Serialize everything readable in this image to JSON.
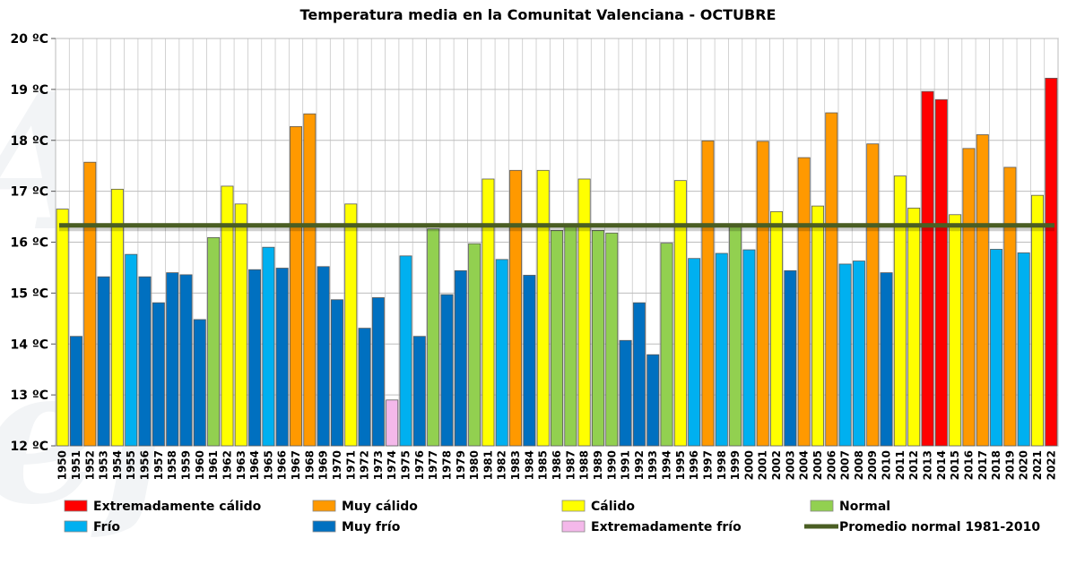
{
  "chart_data": {
    "type": "bar",
    "title": "Temperatura  media  en la Comunitat  Valenciana - OCTUBRE",
    "xlabel": "",
    "ylabel": "",
    "ylim": [
      12,
      20
    ],
    "yticks": [
      12,
      13,
      14,
      15,
      16,
      17,
      18,
      19,
      20
    ],
    "ytick_labels": [
      "12 ºC",
      "13 ºC",
      "14 ºC",
      "15 ºC",
      "16 ºC",
      "17 ºC",
      "18 ºC",
      "19 ºC",
      "20 ºC"
    ],
    "categories": [
      "1950",
      "1951",
      "1952",
      "1953",
      "1954",
      "1955",
      "1956",
      "1957",
      "1958",
      "1959",
      "1960",
      "1961",
      "1962",
      "1963",
      "1964",
      "1965",
      "1966",
      "1967",
      "1968",
      "1969",
      "1970",
      "1971",
      "1972",
      "1973",
      "1974",
      "1975",
      "1976",
      "1977",
      "1978",
      "1979",
      "1980",
      "1981",
      "1982",
      "1983",
      "1984",
      "1985",
      "1986",
      "1987",
      "1988",
      "1989",
      "1990",
      "1991",
      "1992",
      "1993",
      "1994",
      "1995",
      "1996",
      "1997",
      "1998",
      "1999",
      "2000",
      "2001",
      "2002",
      "2003",
      "2004",
      "2005",
      "2006",
      "2007",
      "2008",
      "2009",
      "2010",
      "2011",
      "2012",
      "2013",
      "2014",
      "2015",
      "2016",
      "2017",
      "2018",
      "2019",
      "2020",
      "2021",
      "2022"
    ],
    "values": [
      16.65,
      14.15,
      17.57,
      15.32,
      17.04,
      15.76,
      15.32,
      14.81,
      15.4,
      15.36,
      14.48,
      16.09,
      17.1,
      16.75,
      15.46,
      15.9,
      15.49,
      18.27,
      18.52,
      15.52,
      14.87,
      16.75,
      14.31,
      14.91,
      12.9,
      15.73,
      14.15,
      16.26,
      14.97,
      15.44,
      15.97,
      17.24,
      15.66,
      17.41,
      15.35,
      17.41,
      16.23,
      16.33,
      17.24,
      16.23,
      16.18,
      14.07,
      14.81,
      13.79,
      15.98,
      17.21,
      15.68,
      17.99,
      15.78,
      16.33,
      15.85,
      17.98,
      16.6,
      15.44,
      17.66,
      16.71,
      18.54,
      15.57,
      15.63,
      17.93,
      15.4,
      17.3,
      16.67,
      18.96,
      18.8,
      16.54,
      17.84,
      18.11,
      15.86,
      17.47,
      15.79,
      16.92,
      19.22
    ],
    "classes": [
      "calido",
      "muy_frio",
      "muy_calido",
      "muy_frio",
      "calido",
      "frio",
      "muy_frio",
      "muy_frio",
      "muy_frio",
      "muy_frio",
      "muy_frio",
      "normal",
      "calido",
      "calido",
      "muy_frio",
      "frio",
      "muy_frio",
      "muy_calido",
      "muy_calido",
      "muy_frio",
      "muy_frio",
      "calido",
      "muy_frio",
      "muy_frio",
      "ext_frio",
      "frio",
      "muy_frio",
      "normal",
      "muy_frio",
      "muy_frio",
      "normal",
      "calido",
      "frio",
      "muy_calido",
      "muy_frio",
      "calido",
      "normal",
      "normal",
      "calido",
      "normal",
      "normal",
      "muy_frio",
      "muy_frio",
      "muy_frio",
      "normal",
      "calido",
      "frio",
      "muy_calido",
      "frio",
      "normal",
      "frio",
      "muy_calido",
      "calido",
      "muy_frio",
      "muy_calido",
      "calido",
      "muy_calido",
      "frio",
      "frio",
      "muy_calido",
      "muy_frio",
      "calido",
      "calido",
      "ext_calido",
      "ext_calido",
      "calido",
      "muy_calido",
      "muy_calido",
      "frio",
      "muy_calido",
      "frio",
      "calido",
      "ext_calido"
    ],
    "reference_line": {
      "label": "Promedio normal 1981-2010",
      "value": 16.33,
      "color": "#4a5e23"
    },
    "legend": [
      {
        "key": "ext_calido",
        "label": "Extremadamente cálido",
        "color": "#ff0000"
      },
      {
        "key": "muy_calido",
        "label": "Muy cálido",
        "color": "#ff9900"
      },
      {
        "key": "calido",
        "label": "Cálido",
        "color": "#ffff00"
      },
      {
        "key": "normal",
        "label": "Normal",
        "color": "#92d050"
      },
      {
        "key": "frio",
        "label": "Frío",
        "color": "#00b0f0"
      },
      {
        "key": "muy_frio",
        "label": "Muy frío",
        "color": "#0070c0"
      },
      {
        "key": "ext_frio",
        "label": "Extremadamente frío",
        "color": "#f4b8ea"
      },
      {
        "key": "promedio",
        "label": "Promedio normal 1981-2010",
        "color": "#4a5e23"
      }
    ],
    "legend_position": "bottom",
    "grid": true
  }
}
